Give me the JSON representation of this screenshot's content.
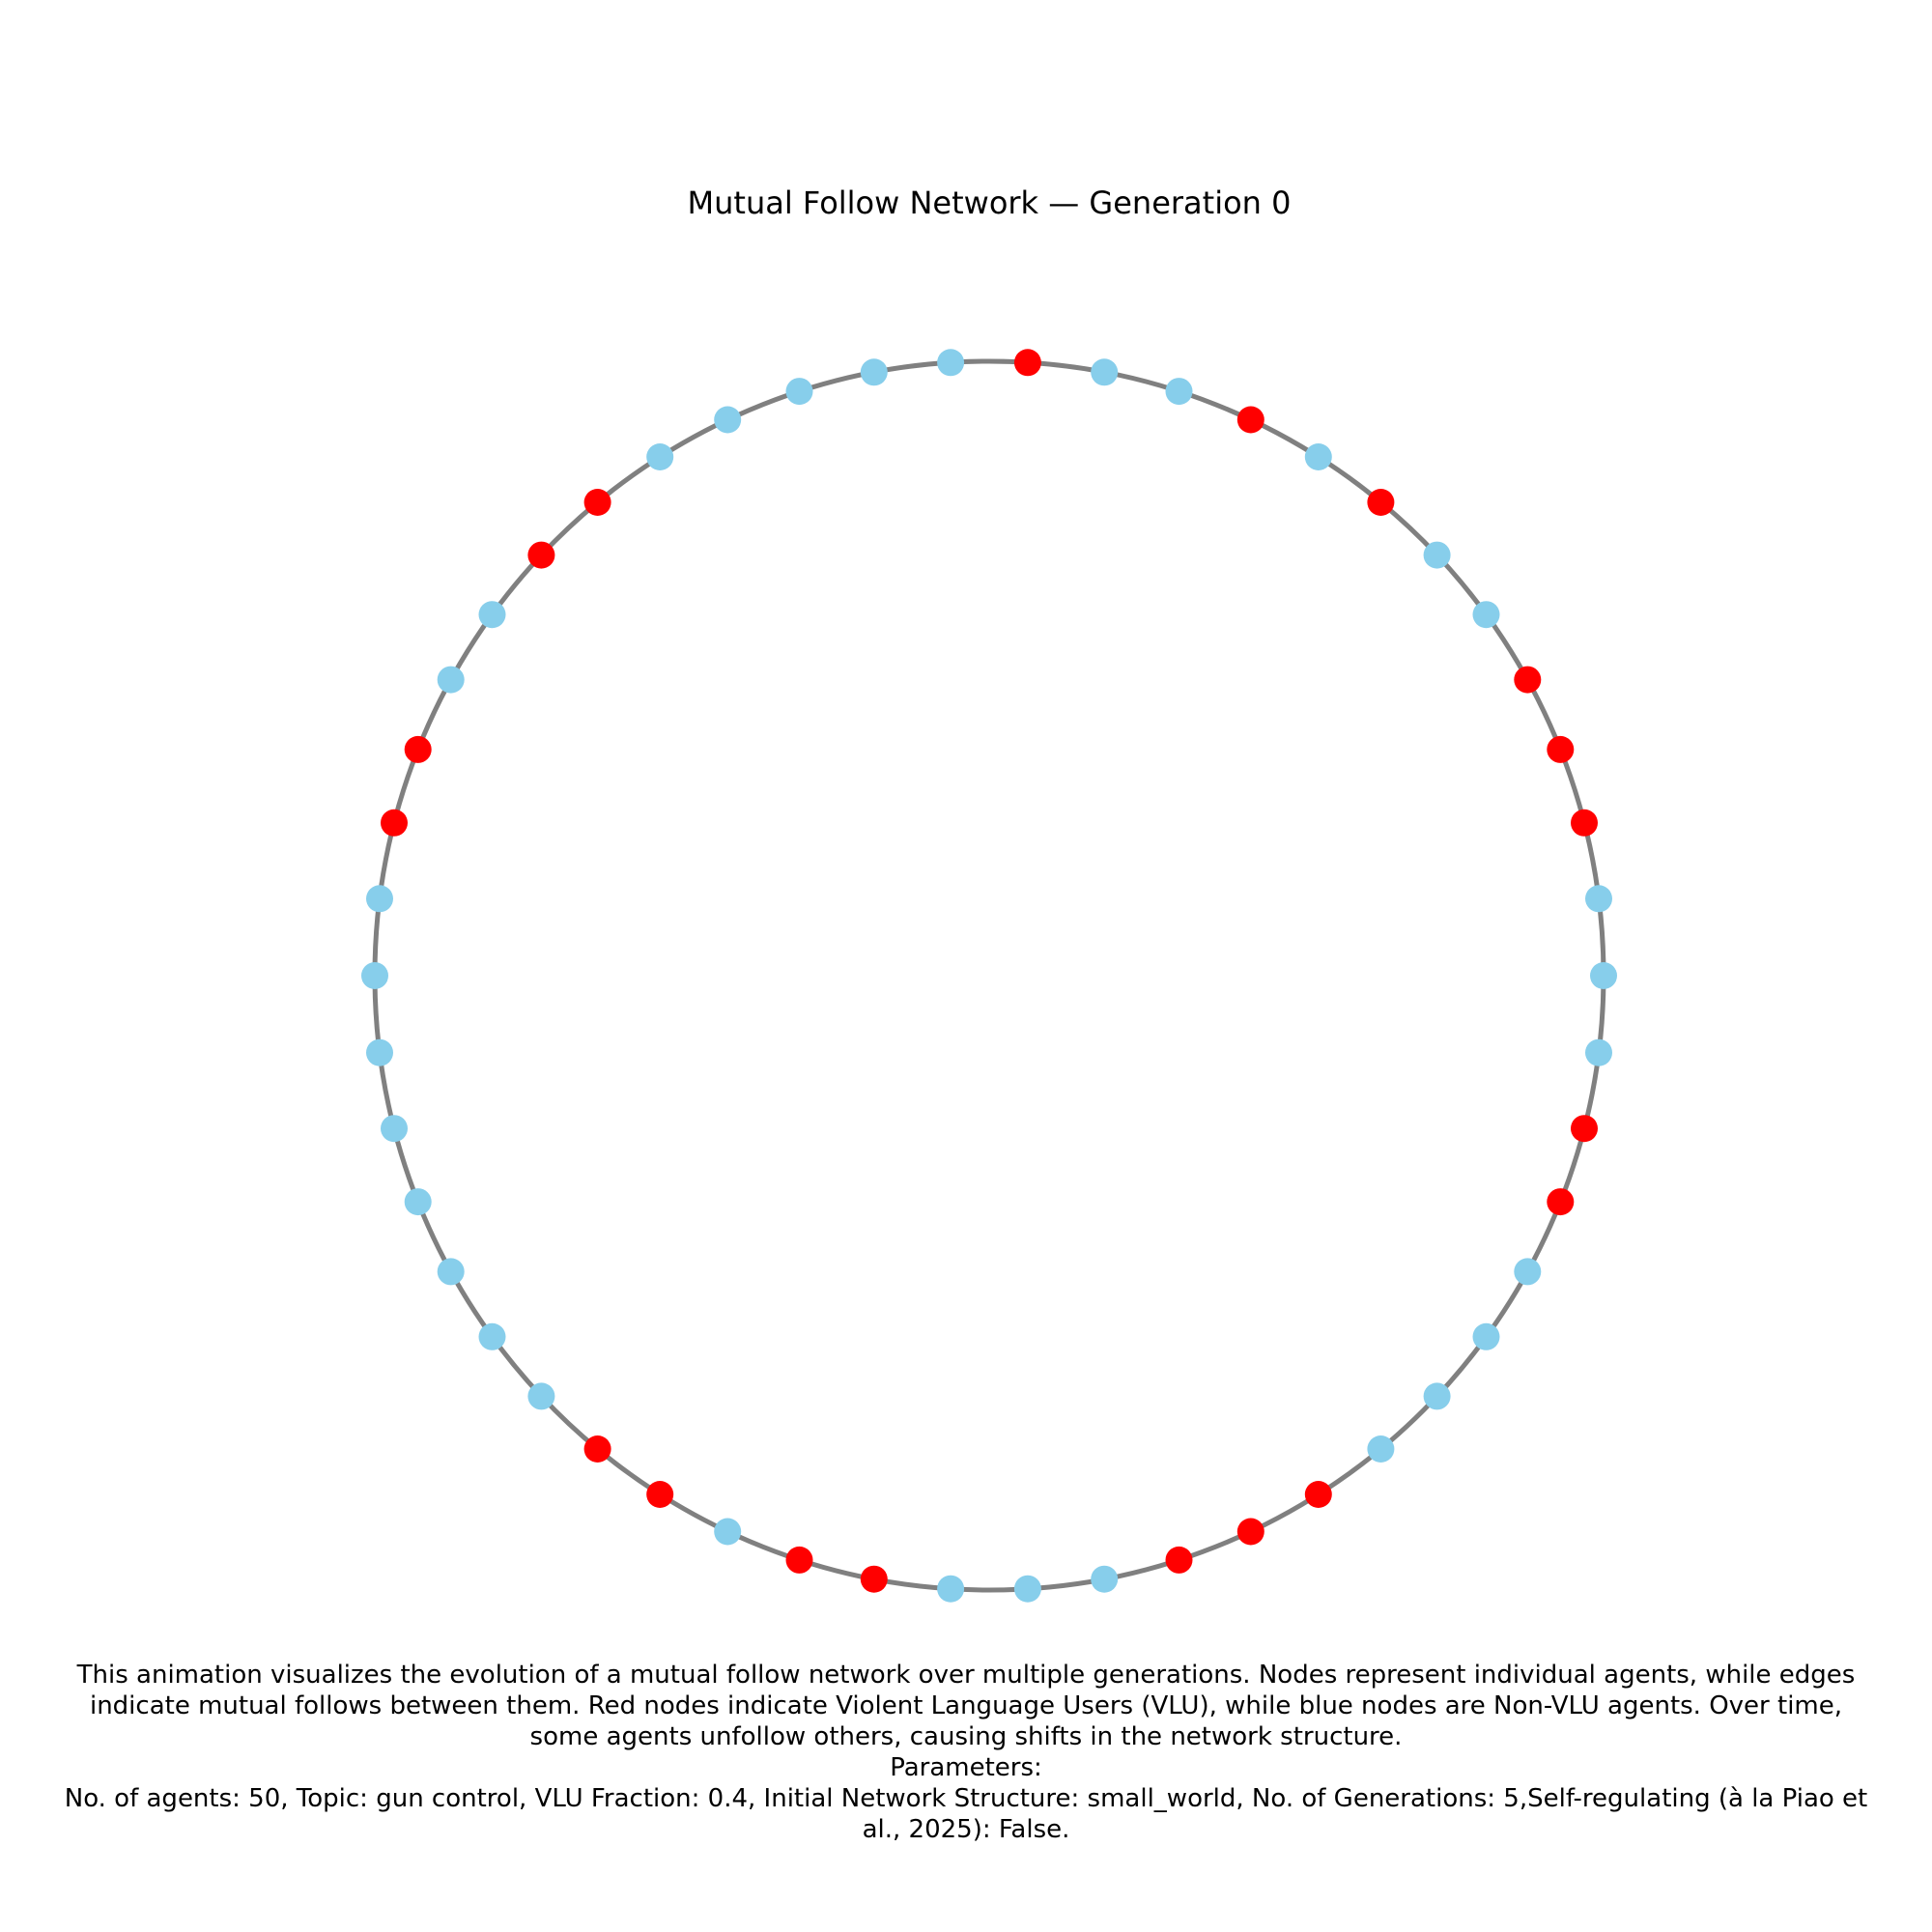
{
  "title": "Mutual Follow Network — Generation 0",
  "colors": {
    "vlu": "#ff0000",
    "non_vlu": "#87ceeb",
    "edge": "#808080"
  },
  "network": {
    "nodes_clockwise_from_top": [
      "vlu",
      "non_vlu",
      "non_vlu",
      "vlu",
      "non_vlu",
      "vlu",
      "non_vlu",
      "non_vlu",
      "vlu",
      "vlu",
      "vlu",
      "non_vlu",
      "non_vlu",
      "non_vlu",
      "vlu",
      "vlu",
      "non_vlu",
      "non_vlu",
      "non_vlu",
      "non_vlu",
      "vlu",
      "vlu",
      "vlu",
      "non_vlu",
      "non_vlu",
      "non_vlu",
      "vlu",
      "vlu",
      "non_vlu",
      "vlu",
      "vlu",
      "non_vlu",
      "non_vlu",
      "non_vlu",
      "non_vlu",
      "non_vlu",
      "non_vlu",
      "non_vlu",
      "non_vlu",
      "vlu",
      "vlu",
      "non_vlu",
      "non_vlu",
      "vlu",
      "vlu",
      "non_vlu",
      "non_vlu",
      "non_vlu",
      "non_vlu",
      "non_vlu"
    ]
  },
  "caption": {
    "line1": "This animation visualizes the evolution of a mutual follow network over multiple generations. Nodes represent individual agents, while edges",
    "line2": "indicate mutual follows between them. Red nodes indicate Violent Language Users (VLU), while blue nodes are Non-VLU agents. Over time,",
    "line3": "some agents unfollow others, causing shifts in the network structure.",
    "line4": "Parameters:",
    "line5": "No. of agents: 50, Topic: gun control, VLU Fraction: 0.4, Initial Network Structure: small_world, No. of Generations: 5,Self-regulating (à la Piao et",
    "line6": "al., 2025): False."
  }
}
